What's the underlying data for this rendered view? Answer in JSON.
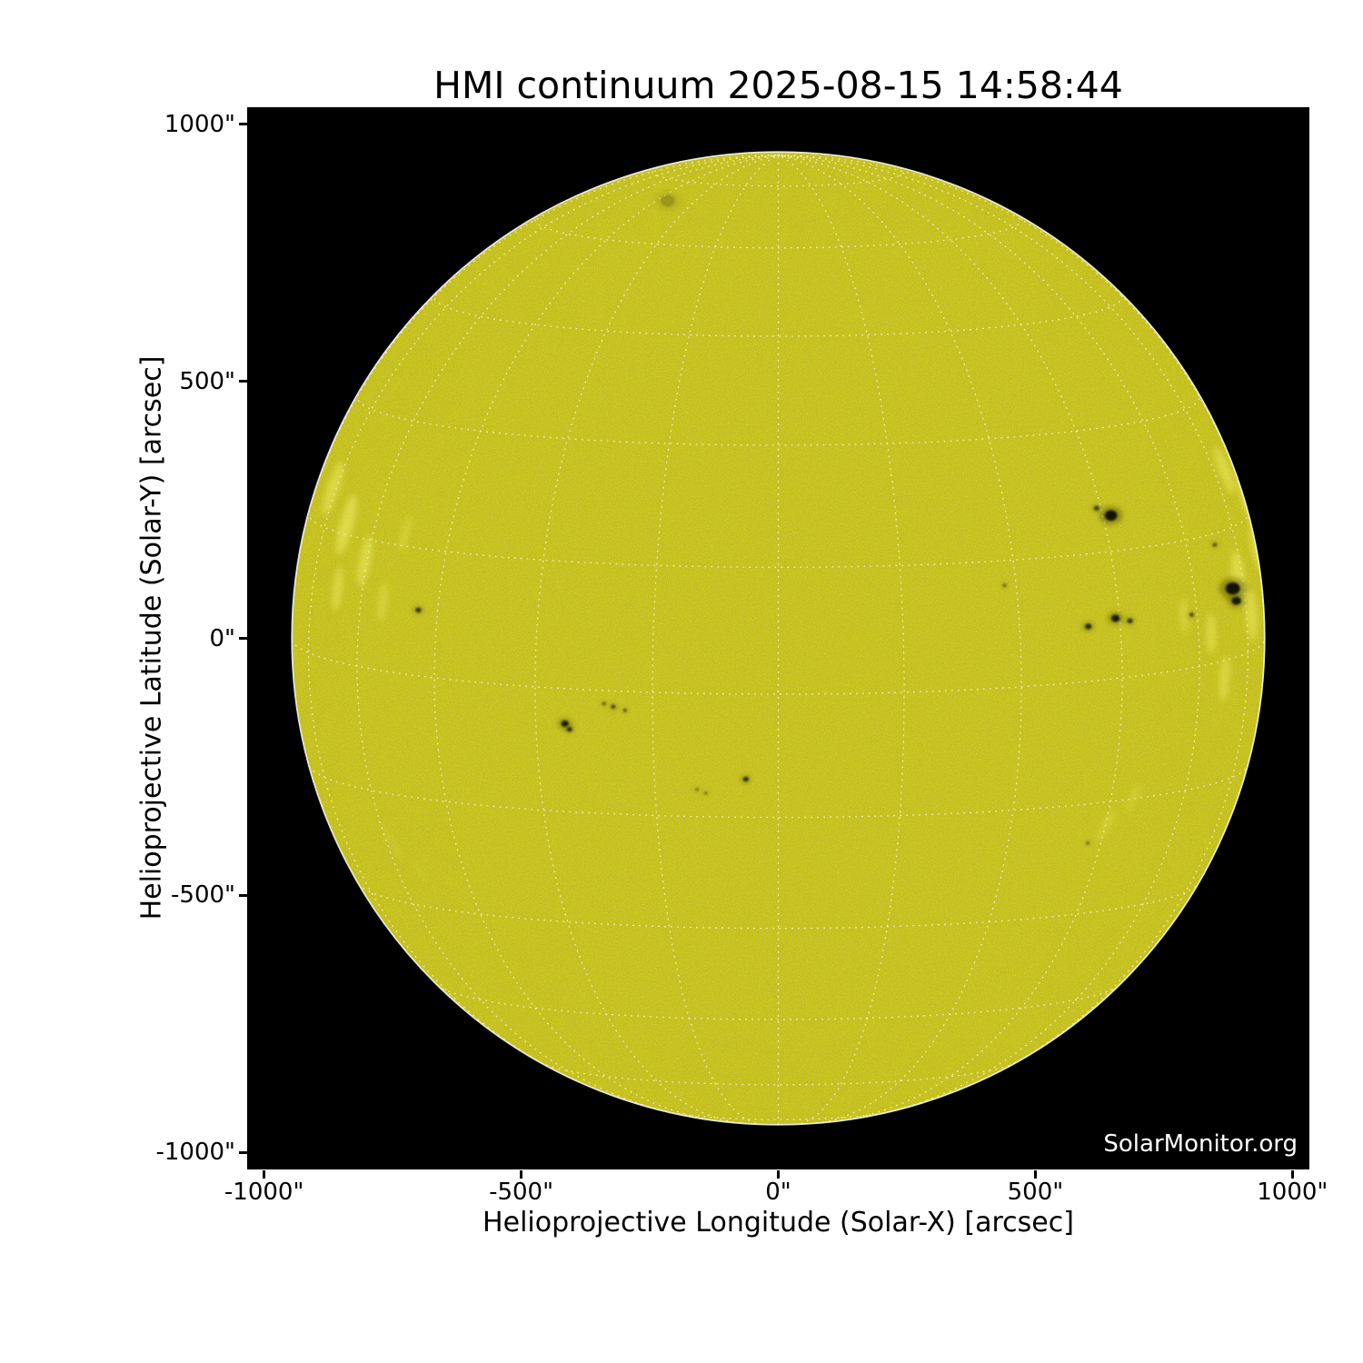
{
  "title": "HMI continuum 2025-08-15 14:58:44",
  "watermark": "SolarMonitor.org",
  "axes": {
    "xlabel": "Helioprojective Longitude (Solar-X) [arcsec]",
    "ylabel": "Helioprojective Latitude (Solar-Y) [arcsec]",
    "xlim": [
      -1033,
      1033
    ],
    "ylim": [
      -1033,
      1033
    ],
    "x_ticks": [
      {
        "value": -1000,
        "label": "-1000\""
      },
      {
        "value": -500,
        "label": "-500\""
      },
      {
        "value": 0,
        "label": "0\""
      },
      {
        "value": 500,
        "label": "500\""
      },
      {
        "value": 1000,
        "label": "1000\""
      }
    ],
    "y_ticks": [
      {
        "value": 1000,
        "label": "1000\""
      },
      {
        "value": 500,
        "label": "500\""
      },
      {
        "value": 0,
        "label": "0\""
      },
      {
        "value": -500,
        "label": "-500\""
      },
      {
        "value": -1000,
        "label": "-1000\""
      }
    ]
  },
  "chart_data": {
    "type": "heatmap",
    "title": "HMI continuum 2025-08-15 14:58:44",
    "xlabel": "Helioprojective Longitude (Solar-X) [arcsec]",
    "ylabel": "Helioprojective Latitude (Solar-Y) [arcsec]",
    "xlim": [
      -1033,
      1033
    ],
    "ylim": [
      -1033,
      1033
    ],
    "grid": "heliographic dotted overlay",
    "legend": "none",
    "solar_disk": {
      "center_arcsec": [
        0,
        0
      ],
      "radius_arcsec": 946,
      "disk_color": "#c8c31d",
      "granule_light_color": "#f0ec5f",
      "granule_dark_color": "#5a5605",
      "limb_rim_color": "#f5f5ee",
      "background_color": "#000000"
    },
    "heliographic_grid": {
      "spacing_deg": 15,
      "b0_deg": 6.6,
      "color": "#ffffff",
      "style": "dotted"
    },
    "sunspots_arcsec": [
      {
        "x": 647,
        "y": 239,
        "r": 12,
        "opacity": 0.95
      },
      {
        "x": 619,
        "y": 253,
        "r": 5,
        "opacity": 0.7
      },
      {
        "x": 603,
        "y": 23,
        "r": 6,
        "opacity": 0.85
      },
      {
        "x": 656,
        "y": 39,
        "r": 8,
        "opacity": 0.9
      },
      {
        "x": 684,
        "y": 34,
        "r": 5,
        "opacity": 0.8
      },
      {
        "x": 884,
        "y": 97,
        "r": 14,
        "opacity": 0.95
      },
      {
        "x": 891,
        "y": 73,
        "r": 9,
        "opacity": 0.9
      },
      {
        "x": 804,
        "y": 46,
        "r": 4,
        "opacity": 0.7
      },
      {
        "x": 849,
        "y": 182,
        "r": 4,
        "opacity": 0.6
      },
      {
        "x": -700,
        "y": 55,
        "r": 5,
        "opacity": 0.8
      },
      {
        "x": -415,
        "y": -166,
        "r": 7,
        "opacity": 0.9
      },
      {
        "x": -406,
        "y": -177,
        "r": 5,
        "opacity": 0.8
      },
      {
        "x": -339,
        "y": -127,
        "r": 3,
        "opacity": 0.7
      },
      {
        "x": -321,
        "y": -133,
        "r": 4,
        "opacity": 0.75
      },
      {
        "x": -298,
        "y": -140,
        "r": 3,
        "opacity": 0.7
      },
      {
        "x": -63,
        "y": -274,
        "r": 5,
        "opacity": 0.85
      },
      {
        "x": -158,
        "y": -294,
        "r": 2.5,
        "opacity": 0.6
      },
      {
        "x": -141,
        "y": -301,
        "r": 2.5,
        "opacity": 0.6
      },
      {
        "x": 440,
        "y": 103,
        "r": 3,
        "opacity": 0.6
      },
      {
        "x": 602,
        "y": -398,
        "r": 3,
        "opacity": 0.5
      },
      {
        "x": -215,
        "y": 851,
        "r": 14,
        "opacity": 0.18
      }
    ],
    "faculae_arcsec": [
      {
        "x": -866,
        "y": 292,
        "len": 110,
        "wid": 24,
        "opacity": 0.5
      },
      {
        "x": -840,
        "y": 221,
        "len": 120,
        "wid": 26,
        "opacity": 0.55
      },
      {
        "x": -804,
        "y": 150,
        "len": 100,
        "wid": 22,
        "opacity": 0.5
      },
      {
        "x": -857,
        "y": 97,
        "len": 90,
        "wid": 20,
        "opacity": 0.45
      },
      {
        "x": -769,
        "y": 71,
        "len": 80,
        "wid": 18,
        "opacity": 0.35
      },
      {
        "x": -725,
        "y": 204,
        "len": 70,
        "wid": 16,
        "opacity": 0.3
      },
      {
        "x": -893,
        "y": 342,
        "len": 80,
        "wid": 18,
        "opacity": 0.4
      },
      {
        "x": 868,
        "y": 327,
        "len": 100,
        "wid": 22,
        "opacity": 0.5
      },
      {
        "x": 912,
        "y": 274,
        "len": 110,
        "wid": 24,
        "opacity": 0.55
      },
      {
        "x": 895,
        "y": 115,
        "len": 110,
        "wid": 26,
        "opacity": 0.55
      },
      {
        "x": 921,
        "y": 44,
        "len": 100,
        "wid": 22,
        "opacity": 0.5
      },
      {
        "x": 842,
        "y": 9,
        "len": 80,
        "wid": 20,
        "opacity": 0.45
      },
      {
        "x": 868,
        "y": -80,
        "len": 90,
        "wid": 20,
        "opacity": 0.45
      },
      {
        "x": 789,
        "y": 44,
        "len": 70,
        "wid": 18,
        "opacity": 0.35
      },
      {
        "x": 930,
        "y": 182,
        "len": 100,
        "wid": 22,
        "opacity": 0.5
      },
      {
        "x": 638,
        "y": -363,
        "len": 70,
        "wid": 16,
        "opacity": 0.28
      },
      {
        "x": 691,
        "y": -310,
        "len": 60,
        "wid": 14,
        "opacity": 0.25
      },
      {
        "x": -751,
        "y": -398,
        "len": 70,
        "wid": 16,
        "opacity": 0.15
      },
      {
        "x": -698,
        "y": -451,
        "len": 60,
        "wid": 14,
        "opacity": 0.12
      }
    ]
  },
  "colors": {
    "figure_background": "#ffffff",
    "plot_background": "#000000",
    "text": "#000000",
    "watermark_text": "#ffffff",
    "tick": "#000000"
  }
}
